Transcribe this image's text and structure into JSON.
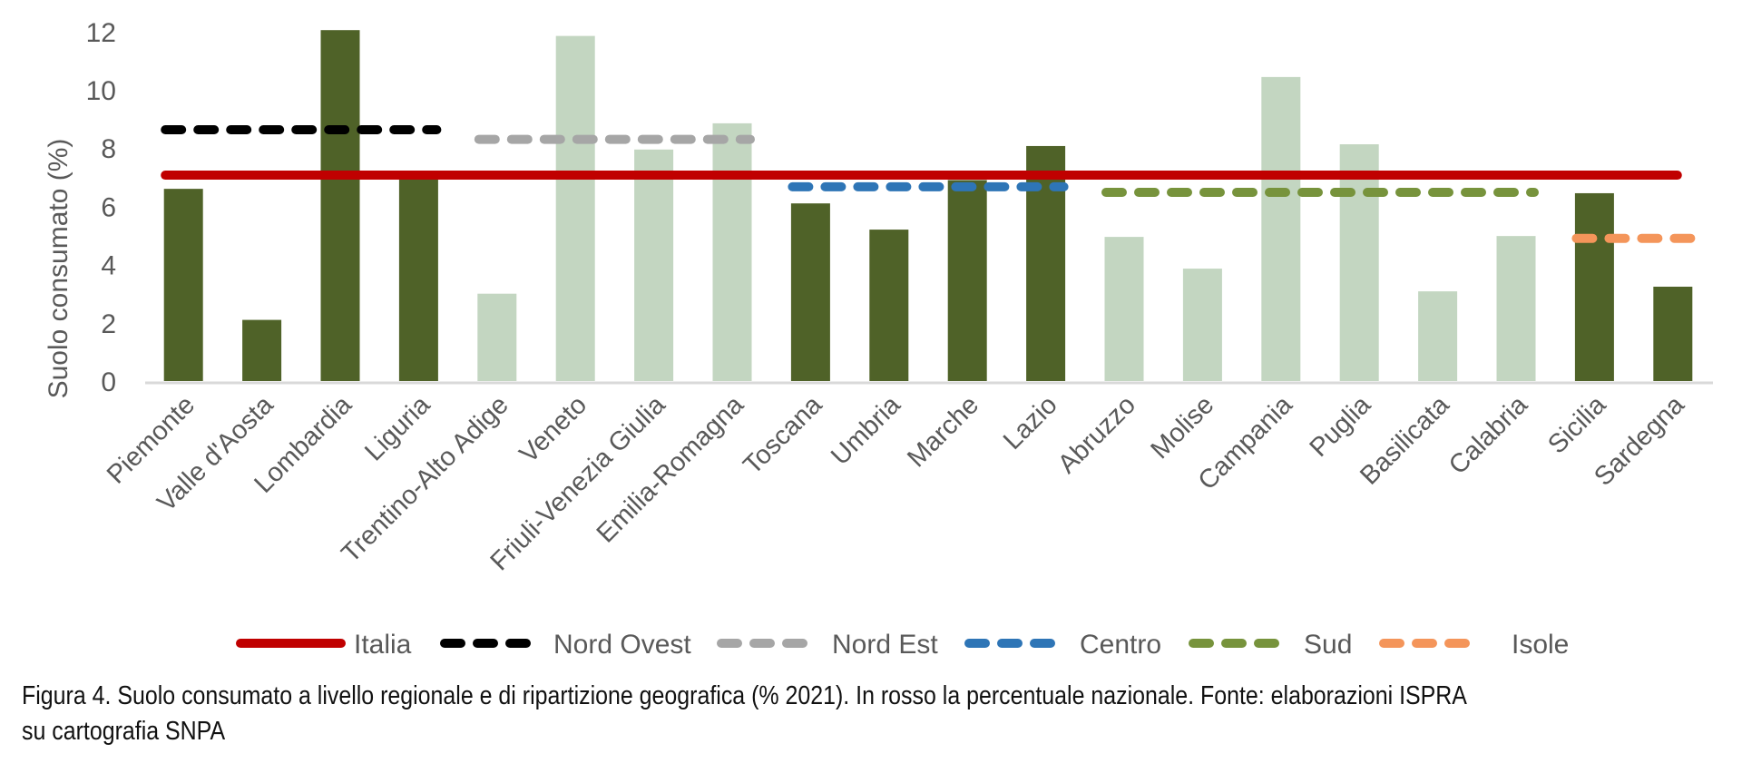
{
  "chart_data": {
    "type": "bar",
    "title": "",
    "xlabel": "",
    "ylabel": "Suolo consumato (%)",
    "ylim": [
      0,
      12
    ],
    "yticks": [
      "0",
      "2",
      "4",
      "6",
      "8",
      "10",
      "12"
    ],
    "grid": false,
    "categories": [
      "Piemonte",
      "Valle d'Aosta",
      "Lombardia",
      "Liguria",
      "Trentino-Alto Adige",
      "Veneto",
      "Friuli-Venezia Giulia",
      "Emilia-Romagna",
      "Toscana",
      "Umbria",
      "Marche",
      "Lazio",
      "Abruzzo",
      "Molise",
      "Campania",
      "Puglia",
      "Basilicata",
      "Calabria",
      "Sicilia",
      "Sardegna"
    ],
    "values": [
      6.6,
      2.1,
      12.05,
      7.0,
      3.0,
      11.85,
      7.95,
      8.85,
      6.1,
      5.2,
      6.9,
      8.07,
      4.95,
      3.86,
      10.44,
      8.13,
      3.08,
      4.98,
      6.45,
      3.24
    ],
    "bar_groups": [
      "dark",
      "dark",
      "dark",
      "dark",
      "light",
      "light",
      "light",
      "light",
      "dark",
      "dark",
      "dark",
      "dark",
      "light",
      "light",
      "light",
      "light",
      "light",
      "light",
      "dark",
      "dark"
    ],
    "bar_colors": {
      "dark": "#4f6228",
      "light": "#c3d6c1"
    },
    "reference_lines": [
      {
        "name": "Italia",
        "value": 7.07,
        "from": "Piemonte",
        "to": "Sardegna",
        "color": "#c00000",
        "style": "solid"
      },
      {
        "name": "Nord Ovest",
        "value": 8.63,
        "from": "Piemonte",
        "to": "Liguria",
        "color": "#000000",
        "style": "dashed"
      },
      {
        "name": "Nord Est",
        "value": 8.3,
        "from": "Trentino-Alto Adige",
        "to": "Emilia-Romagna",
        "color": "#a6a6a6",
        "style": "dashed"
      },
      {
        "name": "Centro",
        "value": 6.67,
        "from": "Toscana",
        "to": "Lazio",
        "color": "#2e75b6",
        "style": "dashed"
      },
      {
        "name": "Sud",
        "value": 6.48,
        "from": "Abruzzo",
        "to": "Calabria",
        "color": "#77933c",
        "style": "dashed"
      },
      {
        "name": "Isole",
        "value": 4.9,
        "from": "Sicilia",
        "to": "Sardegna",
        "color": "#f4955a",
        "style": "dashed"
      }
    ],
    "legend": [
      "Italia",
      "Nord Ovest",
      "Nord Est",
      "Centro",
      "Sud",
      "Isole"
    ],
    "legend_placement": "bottom"
  },
  "caption": {
    "line1": "Figura 4. Suolo consumato a livello regionale e di ripartizione geografica (% 2021). In rosso la percentuale nazionale. Fonte: elaborazioni ISPRA",
    "line2": "su cartografia SNPA"
  }
}
